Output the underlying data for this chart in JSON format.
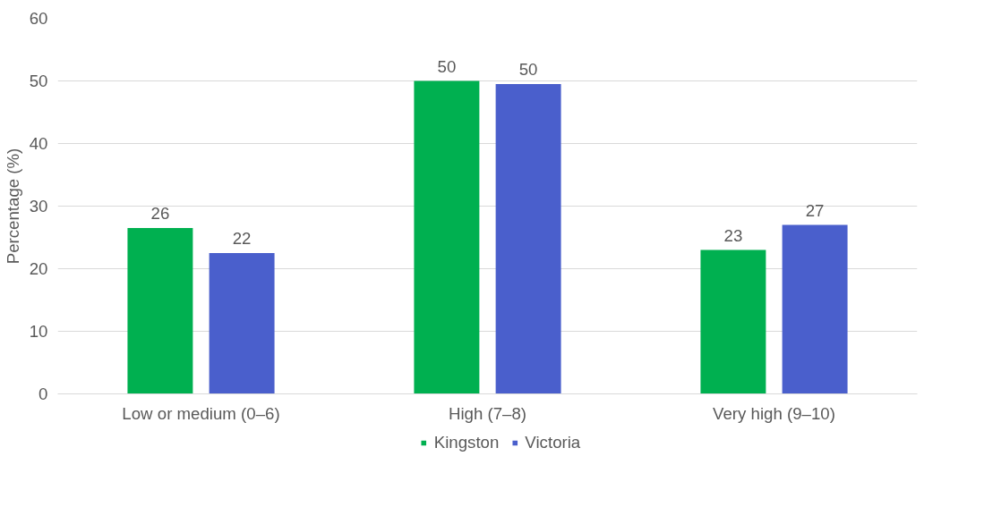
{
  "chart_data": {
    "type": "bar",
    "ylabel": "Percentage (%)",
    "categories": [
      "Low or medium (0–6)",
      "High (7–8)",
      "Very high (9–10)"
    ],
    "series": [
      {
        "name": "Kingston",
        "color": "#00b050",
        "values": [
          26.5,
          50,
          23
        ],
        "value_labels": [
          "26",
          "50",
          "23"
        ]
      },
      {
        "name": "Victoria",
        "color": "#4a5fcc",
        "values": [
          22.5,
          49.5,
          27
        ],
        "value_labels": [
          "22",
          "50",
          "27"
        ]
      }
    ],
    "ylim": [
      0,
      60
    ],
    "yticks": [
      0,
      10,
      20,
      30,
      40,
      50,
      60
    ],
    "grid": "y",
    "legend": "bottom"
  }
}
